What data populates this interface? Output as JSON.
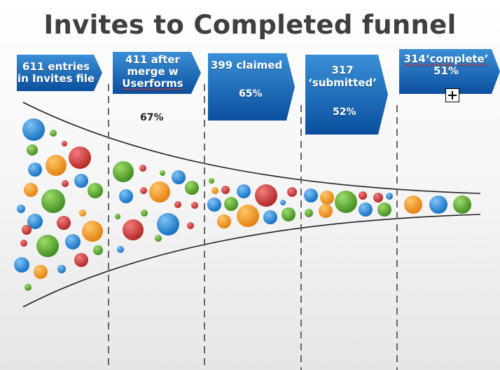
{
  "title": "Invites to Completed funnel",
  "stages": [
    {
      "lines": [
        "611 entries",
        "in Invites file"
      ],
      "percent": ""
    },
    {
      "lines": [
        "411 after",
        "merge w",
        "Userforms"
      ],
      "percent": "67%"
    },
    {
      "lines": [
        "399 claimed"
      ],
      "percent": "65%"
    },
    {
      "lines": [
        "317",
        "‘submitted’"
      ],
      "percent": "52%"
    },
    {
      "lines": [
        "314‘complete’",
        "51%"
      ],
      "percent": ""
    }
  ],
  "colors": {
    "box_top": "#3a8fd6",
    "box_bottom": "#0a4f9e",
    "bubble_blue": "#1e88d8",
    "bubble_red": "#d93a3a",
    "bubble_green": "#5aa832",
    "bubble_orange": "#f29a1e"
  },
  "icons": {
    "expand": "plus-box-icon"
  }
}
